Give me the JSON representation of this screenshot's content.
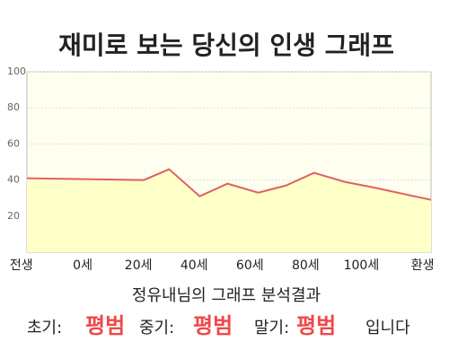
{
  "chart_data": {
    "type": "area",
    "title": "재미로 보는 당신의 인생 그래프",
    "x": [
      -20,
      22,
      31,
      42,
      52,
      63,
      73,
      83,
      94,
      104,
      125
    ],
    "values": [
      41,
      40,
      46,
      31,
      38,
      33,
      37,
      44,
      39,
      36,
      29
    ],
    "color": "#e06060",
    "fill": "#ffffc8",
    "xlim": [
      -20,
      125
    ],
    "xticks": [
      {
        "value": -22,
        "label": "전생"
      },
      {
        "value": 0,
        "label": "0세"
      },
      {
        "value": 20,
        "label": "20세"
      },
      {
        "value": 40,
        "label": "40세"
      },
      {
        "value": 60,
        "label": "60세"
      },
      {
        "value": 80,
        "label": "80세"
      },
      {
        "value": 100,
        "label": "100세"
      },
      {
        "value": 122,
        "label": "환생"
      }
    ],
    "ylim": [
      0,
      100
    ],
    "yticks": [
      20,
      40,
      60,
      80,
      100
    ],
    "grid": true
  },
  "summary": {
    "heading": "정유내님의 그래프 분석결과",
    "items": [
      {
        "label": "초기:",
        "value": "평범"
      },
      {
        "label": "중기:",
        "value": "평범"
      },
      {
        "label": "말기:",
        "value": "평범"
      }
    ],
    "ending": "입니다"
  }
}
